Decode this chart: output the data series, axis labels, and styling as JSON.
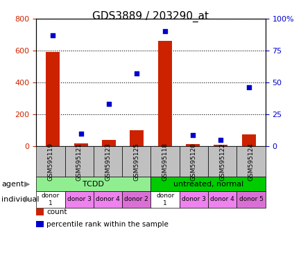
{
  "title": "GDS3889 / 203290_at",
  "samples": [
    "GSM595119",
    "GSM595121",
    "GSM595123",
    "GSM595125",
    "GSM595118",
    "GSM595120",
    "GSM595122",
    "GSM595124"
  ],
  "counts": [
    590,
    20,
    40,
    100,
    660,
    15,
    10,
    75
  ],
  "percentiles": [
    87,
    10,
    33,
    57,
    90,
    9,
    5,
    46
  ],
  "ylim_left": [
    0,
    800
  ],
  "ylim_right": [
    0,
    100
  ],
  "yticks_left": [
    0,
    200,
    400,
    600,
    800
  ],
  "yticks_right": [
    0,
    25,
    50,
    75,
    100
  ],
  "yticklabels_right": [
    "0",
    "25",
    "50",
    "75",
    "100%"
  ],
  "agent_groups": [
    {
      "label": "TCDD",
      "start": 0,
      "end": 4,
      "color": "#90EE90"
    },
    {
      "label": "untreated, normal",
      "start": 4,
      "end": 8,
      "color": "#00CC00"
    }
  ],
  "individual_groups": [
    {
      "label": "donor\n1",
      "start": 0,
      "end": 1,
      "color": "#FFFFFF"
    },
    {
      "label": "donor 3",
      "start": 1,
      "end": 2,
      "color": "#EE82EE"
    },
    {
      "label": "donor 4",
      "start": 2,
      "end": 3,
      "color": "#EE82EE"
    },
    {
      "label": "donor 2",
      "start": 3,
      "end": 4,
      "color": "#DA70D6"
    },
    {
      "label": "donor\n1",
      "start": 4,
      "end": 5,
      "color": "#FFFFFF"
    },
    {
      "label": "donor 3",
      "start": 5,
      "end": 6,
      "color": "#EE82EE"
    },
    {
      "label": "donor 4",
      "start": 6,
      "end": 7,
      "color": "#EE82EE"
    },
    {
      "label": "donor 5",
      "start": 7,
      "end": 8,
      "color": "#DA70D6"
    }
  ],
  "bar_color": "#CC2200",
  "scatter_color": "#0000CC",
  "bar_width": 0.5,
  "legend_items": [
    {
      "color": "#CC2200",
      "label": "count"
    },
    {
      "color": "#0000CC",
      "label": "percentile rank within the sample"
    }
  ],
  "sample_box_color": "#C0C0C0",
  "title_fontsize": 11,
  "tick_fontsize": 8
}
